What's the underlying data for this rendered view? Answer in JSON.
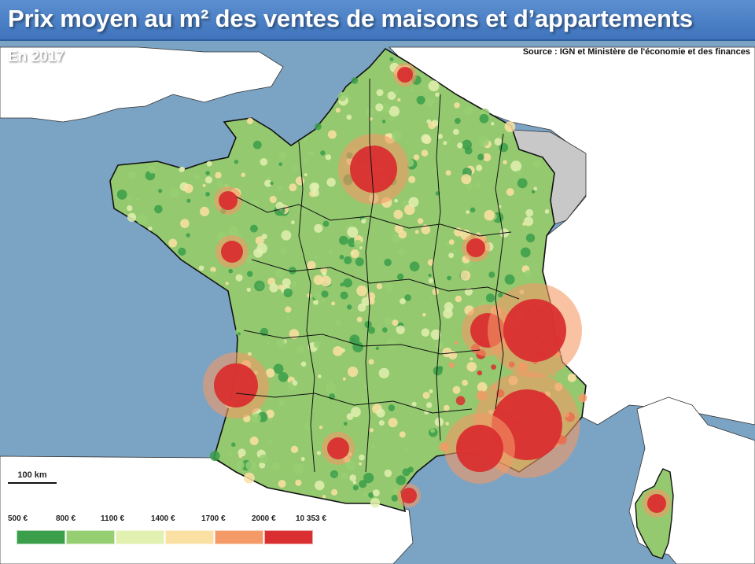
{
  "title": "Prix moyen au m² des ventes de maisons et d’appartements",
  "subtitle": "En 2017",
  "source": "Source : IGN et Ministère de l'économie et des finances",
  "scale_bar": {
    "label": "100 km"
  },
  "legend": {
    "labels": [
      "500 €",
      "800 €",
      "1100 €",
      "1400 €",
      "1700 €",
      "2000 €",
      "10 353 €"
    ],
    "colors": [
      "#3a9e4a",
      "#96cf72",
      "#e2f0b0",
      "#fbe0a3",
      "#f39a66",
      "#d92f30"
    ]
  },
  "colors": {
    "sea": "#7aa3c4",
    "foreign_land": "#ffffff",
    "no_data": "#c8c8c8",
    "borders": "#111111"
  }
}
